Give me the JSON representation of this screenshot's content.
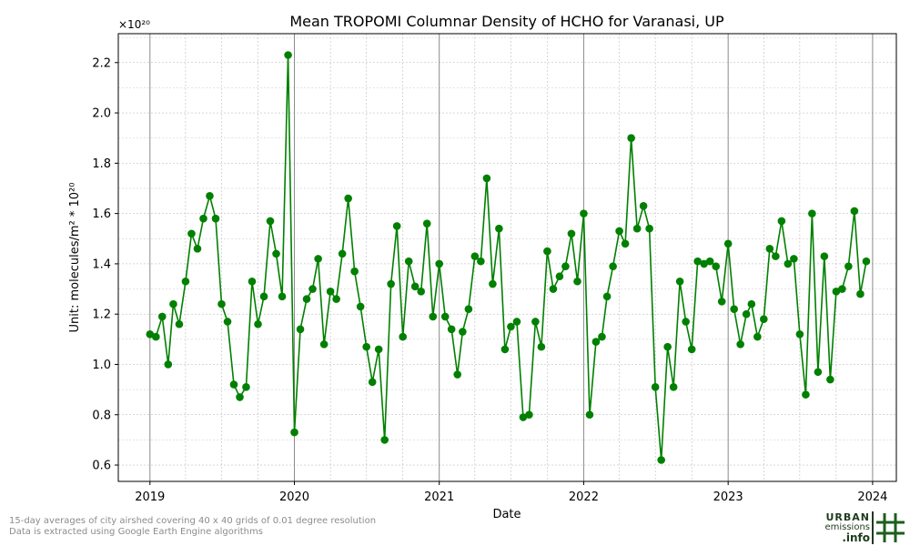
{
  "chart_data": {
    "type": "line",
    "title": "Mean TROPOMI Columnar Density of HCHO for Varanasi, UP",
    "xlabel": "Date",
    "ylabel": "Unit: molecules/m² * 10²⁰",
    "y_multiplier": "×10²⁰",
    "xlim": [
      "2018-10-13",
      "2024-03-01"
    ],
    "ylim": [
      0.535,
      2.315
    ],
    "x_ticks": [
      "2019",
      "2020",
      "2021",
      "2022",
      "2023",
      "2024"
    ],
    "y_ticks": [
      "0.6",
      "0.8",
      "1.0",
      "1.2",
      "1.4",
      "1.6",
      "1.8",
      "2.0",
      "2.2"
    ],
    "grid": true,
    "series": [
      {
        "color": "#008000",
        "marker": "circle",
        "x": [
          "2019-01-01",
          "2019-01-16",
          "2019-02-01",
          "2019-02-16",
          "2019-03-01",
          "2019-03-16",
          "2019-04-01",
          "2019-04-16",
          "2019-05-01",
          "2019-05-16",
          "2019-06-01",
          "2019-06-16",
          "2019-07-01",
          "2019-07-16",
          "2019-08-01",
          "2019-08-16",
          "2019-09-01",
          "2019-09-16",
          "2019-10-01",
          "2019-10-16",
          "2019-11-01",
          "2019-11-16",
          "2019-12-01",
          "2019-12-16",
          "2020-01-01",
          "2020-01-16",
          "2020-02-01",
          "2020-02-16",
          "2020-03-01",
          "2020-03-16",
          "2020-04-01",
          "2020-04-16",
          "2020-05-01",
          "2020-05-16",
          "2020-06-01",
          "2020-06-16",
          "2020-07-01",
          "2020-07-16",
          "2020-08-01",
          "2020-08-16",
          "2020-09-01",
          "2020-09-16",
          "2020-10-01",
          "2020-10-16",
          "2020-11-01",
          "2020-11-16",
          "2020-12-01",
          "2020-12-16",
          "2021-01-01",
          "2021-01-16",
          "2021-02-01",
          "2021-02-16",
          "2021-03-01",
          "2021-03-16",
          "2021-04-01",
          "2021-04-16",
          "2021-05-01",
          "2021-05-16",
          "2021-06-01",
          "2021-06-16",
          "2021-07-01",
          "2021-07-16",
          "2021-08-01",
          "2021-08-16",
          "2021-09-01",
          "2021-09-16",
          "2021-10-01",
          "2021-10-16",
          "2021-11-01",
          "2021-11-16",
          "2021-12-01",
          "2021-12-16",
          "2022-01-01",
          "2022-01-16",
          "2022-02-01",
          "2022-02-16",
          "2022-03-01",
          "2022-03-16",
          "2022-04-01",
          "2022-04-16",
          "2022-05-01",
          "2022-05-16",
          "2022-06-01",
          "2022-06-16",
          "2022-07-01",
          "2022-07-16",
          "2022-08-01",
          "2022-08-16",
          "2022-09-01",
          "2022-09-16",
          "2022-10-01",
          "2022-10-16",
          "2022-11-01",
          "2022-11-16",
          "2022-12-01",
          "2022-12-16",
          "2023-01-01",
          "2023-01-16",
          "2023-02-01",
          "2023-02-16",
          "2023-03-01",
          "2023-03-16",
          "2023-04-01",
          "2023-04-16",
          "2023-05-01",
          "2023-05-16",
          "2023-06-01",
          "2023-06-16",
          "2023-07-01",
          "2023-07-16",
          "2023-08-01",
          "2023-08-16",
          "2023-09-01",
          "2023-09-16",
          "2023-10-01",
          "2023-10-16",
          "2023-11-01",
          "2023-11-16",
          "2023-12-01",
          "2023-12-16"
        ],
        "y": [
          1.12,
          1.11,
          1.19,
          1.0,
          1.24,
          1.16,
          1.33,
          1.52,
          1.46,
          1.58,
          1.67,
          1.58,
          1.24,
          1.17,
          0.92,
          0.87,
          0.91,
          1.33,
          1.16,
          1.27,
          1.57,
          1.44,
          1.27,
          2.23,
          0.73,
          1.14,
          1.26,
          1.3,
          1.42,
          1.08,
          1.29,
          1.26,
          1.44,
          1.66,
          1.37,
          1.23,
          1.07,
          0.93,
          1.06,
          0.7,
          1.32,
          1.55,
          1.11,
          1.41,
          1.31,
          1.29,
          1.56,
          1.19,
          1.4,
          1.19,
          1.14,
          0.96,
          1.13,
          1.22,
          1.43,
          1.41,
          1.74,
          1.32,
          1.54,
          1.06,
          1.15,
          1.17,
          0.79,
          0.8,
          1.17,
          1.07,
          1.45,
          1.3,
          1.35,
          1.39,
          1.52,
          1.33,
          1.6,
          0.8,
          1.09,
          1.11,
          1.27,
          1.39,
          1.53,
          1.48,
          1.9,
          1.54,
          1.63,
          1.54,
          0.91,
          0.62,
          1.07,
          0.91,
          1.33,
          1.17,
          1.06,
          1.41,
          1.4,
          1.41,
          1.39,
          1.25,
          1.48,
          1.22,
          1.08,
          1.2,
          1.24,
          1.11,
          1.18,
          1.46,
          1.43,
          1.57,
          1.4,
          1.42,
          1.12,
          0.88,
          1.6,
          0.97,
          1.43,
          0.94,
          1.29,
          1.3,
          1.39,
          1.61,
          1.28,
          1.41
        ]
      }
    ]
  },
  "footnote": {
    "line1": "15-day averages of city airshed covering 40 x 40 grids of 0.01 degree resolution",
    "line2": "Data is extracted using Google Earth Engine algorithms"
  },
  "logo": {
    "line1": "URBAN",
    "line2": "emissions",
    "line3": ".info",
    "color": "#1d5e1d"
  }
}
